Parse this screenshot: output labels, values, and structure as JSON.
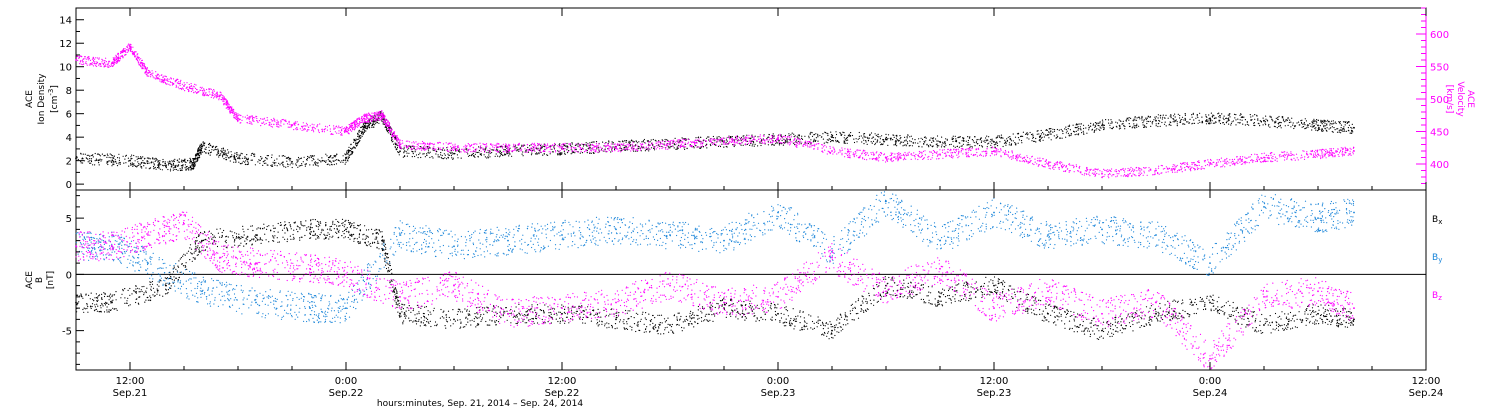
{
  "chart_data": [
    {
      "type": "scatter",
      "xlim": [
        "2014-09-21T09:00",
        "2014-09-24T12:00"
      ],
      "yaxis_left": {
        "label_lines": [
          "ACE",
          "Ion Density"
        ],
        "unit_main": "[cm",
        "unit_sup": "-3",
        "unit_close": "]",
        "ylim": [
          -0.5,
          15
        ],
        "ticks": [
          0,
          2,
          4,
          6,
          8,
          10,
          12,
          14
        ]
      },
      "yaxis_right": {
        "label_lines": [
          "ACE",
          "Velocity"
        ],
        "unit": "[km/s]",
        "ylim": [
          360,
          640
        ],
        "ticks": [
          400,
          450,
          500,
          550,
          600
        ]
      },
      "series": [
        {
          "axis": "left",
          "color": "#000000",
          "x": [
            "2014-09-21T09:00",
            "2014-09-21T12:00",
            "2014-09-21T14:00",
            "2014-09-21T15:30",
            "2014-09-21T16:00",
            "2014-09-21T18:00",
            "2014-09-21T21:00",
            "2014-09-22T00:00",
            "2014-09-22T01:00",
            "2014-09-22T02:00",
            "2014-09-22T03:00",
            "2014-09-22T06:00",
            "2014-09-22T09:00",
            "2014-09-22T12:00",
            "2014-09-22T15:00",
            "2014-09-22T18:00",
            "2014-09-22T21:00",
            "2014-09-23T00:00",
            "2014-09-23T03:00",
            "2014-09-23T06:00",
            "2014-09-23T09:00",
            "2014-09-23T12:00",
            "2014-09-23T15:00",
            "2014-09-23T18:00",
            "2014-09-23T21:00",
            "2014-09-24T00:00",
            "2014-09-24T03:00",
            "2014-09-24T06:00",
            "2014-09-24T08:00"
          ],
          "values": [
            2.2,
            2.0,
            1.6,
            1.7,
            3.2,
            2.2,
            1.9,
            2.2,
            4.8,
            5.8,
            2.8,
            2.6,
            2.8,
            3.0,
            3.2,
            3.4,
            3.6,
            3.8,
            4.0,
            3.8,
            3.6,
            3.6,
            4.2,
            5.0,
            5.4,
            5.6,
            5.4,
            5.0,
            4.8
          ]
        },
        {
          "axis": "right",
          "color": "#ff00ff",
          "x": [
            "2014-09-21T09:00",
            "2014-09-21T11:00",
            "2014-09-21T12:00",
            "2014-09-21T13:00",
            "2014-09-21T15:00",
            "2014-09-21T17:00",
            "2014-09-21T18:00",
            "2014-09-21T21:00",
            "2014-09-22T00:00",
            "2014-09-22T01:00",
            "2014-09-22T02:00",
            "2014-09-22T03:00",
            "2014-09-22T06:00",
            "2014-09-22T09:00",
            "2014-09-22T12:00",
            "2014-09-22T15:00",
            "2014-09-22T18:00",
            "2014-09-22T21:00",
            "2014-09-23T00:00",
            "2014-09-23T03:00",
            "2014-09-23T06:00",
            "2014-09-23T09:00",
            "2014-09-23T12:00",
            "2014-09-23T15:00",
            "2014-09-23T18:00",
            "2014-09-23T21:00",
            "2014-09-24T00:00",
            "2014-09-24T03:00",
            "2014-09-24T06:00",
            "2014-09-24T08:00"
          ],
          "values": [
            560,
            555,
            580,
            540,
            520,
            505,
            470,
            460,
            450,
            470,
            475,
            430,
            425,
            425,
            425,
            425,
            430,
            435,
            440,
            420,
            410,
            415,
            420,
            400,
            385,
            390,
            400,
            410,
            415,
            420
          ]
        }
      ]
    },
    {
      "type": "scatter",
      "xlim": [
        "2014-09-21T09:00",
        "2014-09-24T12:00"
      ],
      "yaxis_left": {
        "label_lines": [
          "ACE",
          "B"
        ],
        "unit": "[nT]",
        "ylim": [
          -8.5,
          7.5
        ],
        "ticks": [
          -5,
          0,
          5
        ]
      },
      "zero_line": true,
      "legend": [
        {
          "base": "B",
          "sub": "x",
          "color": "#000000"
        },
        {
          "base": "B",
          "sub": "y",
          "color": "#1a85d9"
        },
        {
          "base": "B",
          "sub": "z",
          "color": "#ff00ff"
        }
      ],
      "series": [
        {
          "color": "#000000",
          "x": [
            "2014-09-21T09:00",
            "2014-09-21T11:00",
            "2014-09-21T14:00",
            "2014-09-21T16:00",
            "2014-09-21T19:00",
            "2014-09-21T22:00",
            "2014-09-22T00:00",
            "2014-09-22T02:00",
            "2014-09-22T03:00",
            "2014-09-22T06:00",
            "2014-09-22T09:00",
            "2014-09-22T12:00",
            "2014-09-22T15:00",
            "2014-09-22T18:00",
            "2014-09-22T21:00",
            "2014-09-23T00:00",
            "2014-09-23T03:00",
            "2014-09-23T06:00",
            "2014-09-23T09:00",
            "2014-09-23T12:00",
            "2014-09-23T15:00",
            "2014-09-23T18:00",
            "2014-09-23T21:00",
            "2014-09-24T00:00",
            "2014-09-24T03:00",
            "2014-09-24T06:00",
            "2014-09-24T08:00"
          ],
          "values": [
            -2.5,
            -2.5,
            -1.0,
            3.0,
            3.5,
            4.0,
            4.0,
            3.0,
            -3.5,
            -4.0,
            -3.5,
            -3.5,
            -4.0,
            -4.5,
            -3.0,
            -3.5,
            -5.0,
            -1.0,
            -2.0,
            -1.0,
            -3.5,
            -5.0,
            -3.5,
            -2.5,
            -4.5,
            -3.5,
            -4.0
          ]
        },
        {
          "color": "#1a85d9",
          "x": [
            "2014-09-21T09:00",
            "2014-09-21T11:00",
            "2014-09-21T13:00",
            "2014-09-21T16:00",
            "2014-09-21T19:00",
            "2014-09-21T22:00",
            "2014-09-22T00:00",
            "2014-09-22T03:00",
            "2014-09-22T06:00",
            "2014-09-22T09:00",
            "2014-09-22T12:00",
            "2014-09-22T15:00",
            "2014-09-22T18:00",
            "2014-09-22T21:00",
            "2014-09-23T00:00",
            "2014-09-23T03:00",
            "2014-09-23T06:00",
            "2014-09-23T09:00",
            "2014-09-23T12:00",
            "2014-09-23T15:00",
            "2014-09-23T18:00",
            "2014-09-23T21:00",
            "2014-09-24T00:00",
            "2014-09-24T03:00",
            "2014-09-24T06:00",
            "2014-09-24T08:00"
          ],
          "values": [
            2.5,
            2.5,
            1.0,
            -1.5,
            -2.5,
            -3.0,
            -3.0,
            3.5,
            2.5,
            3.0,
            3.5,
            4.0,
            3.5,
            3.0,
            5.5,
            2.0,
            6.5,
            3.0,
            5.5,
            3.5,
            4.0,
            3.5,
            1.0,
            6.0,
            5.0,
            5.5
          ]
        },
        {
          "color": "#ff00ff",
          "x": [
            "2014-09-21T09:00",
            "2014-09-21T11:00",
            "2014-09-21T13:00",
            "2014-09-21T15:00",
            "2014-09-21T17:00",
            "2014-09-21T19:00",
            "2014-09-21T22:00",
            "2014-09-22T00:00",
            "2014-09-22T03:00",
            "2014-09-22T06:00",
            "2014-09-22T09:00",
            "2014-09-22T12:00",
            "2014-09-22T15:00",
            "2014-09-22T18:00",
            "2014-09-22T21:00",
            "2014-09-23T00:00",
            "2014-09-23T03:00",
            "2014-09-23T06:00",
            "2014-09-23T09:00",
            "2014-09-23T12:00",
            "2014-09-23T15:00",
            "2014-09-23T18:00",
            "2014-09-23T21:00",
            "2014-09-24T00:00",
            "2014-09-24T03:00",
            "2014-09-24T06:00",
            "2014-09-24T08:00"
          ],
          "values": [
            2.5,
            2.5,
            3.5,
            4.5,
            1.5,
            1.0,
            0.5,
            0.0,
            -2.0,
            -1.0,
            -3.5,
            -3.0,
            -2.5,
            -1.0,
            -2.5,
            -2.0,
            1.5,
            -1.5,
            0.5,
            -3.0,
            -1.5,
            -3.5,
            -2.5,
            -7.5,
            -2.0,
            -1.5,
            -3.0
          ]
        }
      ]
    }
  ],
  "xaxis": {
    "ticks": [
      {
        "at": "2014-09-21T12:00",
        "time": "12:00",
        "date": "Sep.21"
      },
      {
        "at": "2014-09-22T00:00",
        "time": "0:00",
        "date": "Sep.22"
      },
      {
        "at": "2014-09-22T12:00",
        "time": "12:00",
        "date": "Sep.22"
      },
      {
        "at": "2014-09-23T00:00",
        "time": "0:00",
        "date": "Sep.23"
      },
      {
        "at": "2014-09-23T12:00",
        "time": "12:00",
        "date": "Sep.23"
      },
      {
        "at": "2014-09-24T00:00",
        "time": "0:00",
        "date": "Sep.24"
      },
      {
        "at": "2014-09-24T12:00",
        "time": "12:00",
        "date": "Sep.24"
      }
    ],
    "label": "hours:minutes, Sep. 21, 2014 – Sep. 24, 2014"
  }
}
